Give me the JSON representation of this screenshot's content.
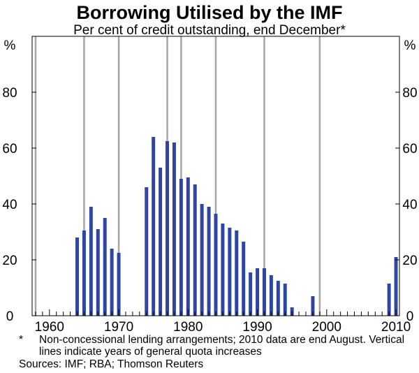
{
  "chart_data": {
    "type": "bar",
    "title": "Borrowing Utilised by the IMF",
    "subtitle": "Per cent of credit outstanding, end December*",
    "ylabel_left": "%",
    "ylabel_right": "%",
    "ylim": [
      0,
      100
    ],
    "yticks": [
      0,
      20,
      40,
      60,
      80
    ],
    "xlim": [
      1957.5,
      2010.5
    ],
    "xticks": [
      1960,
      1970,
      1980,
      1990,
      2000,
      2010
    ],
    "x": [
      1958,
      1959,
      1960,
      1961,
      1962,
      1963,
      1964,
      1965,
      1966,
      1967,
      1968,
      1969,
      1970,
      1971,
      1972,
      1973,
      1974,
      1975,
      1976,
      1977,
      1978,
      1979,
      1980,
      1981,
      1982,
      1983,
      1984,
      1985,
      1986,
      1987,
      1988,
      1989,
      1990,
      1991,
      1992,
      1993,
      1994,
      1995,
      1996,
      1997,
      1998,
      1999,
      2000,
      2001,
      2002,
      2003,
      2004,
      2005,
      2006,
      2007,
      2008,
      2009,
      2010
    ],
    "values": [
      0,
      0,
      0,
      0,
      0,
      0,
      28,
      30.5,
      39,
      31,
      35,
      24,
      22.5,
      0,
      0,
      0,
      46,
      64,
      53,
      62.5,
      62,
      49,
      49.5,
      47,
      40,
      39,
      36.5,
      33,
      31.5,
      30.5,
      26.5,
      15.5,
      17,
      17,
      14.5,
      12.5,
      11.5,
      3,
      0,
      0,
      7,
      0,
      0,
      0,
      0,
      0,
      0,
      0,
      0,
      0,
      0,
      11.5,
      21
    ],
    "quota_increase_years": [
      1958,
      1965,
      1970,
      1977,
      1979,
      1984,
      1991,
      1999
    ],
    "colors": {
      "bars": "#2e45a2",
      "quota_lines": "#a6a6a6",
      "axes": "#000000"
    },
    "footnote_marker": "*",
    "footnote_line1": "Non-concessional lending arrangements; 2010 data are end August. Vertical",
    "footnote_line2": "lines indicate years of general quota increases",
    "sources": "Sources: IMF; RBA; Thomson Reuters"
  }
}
